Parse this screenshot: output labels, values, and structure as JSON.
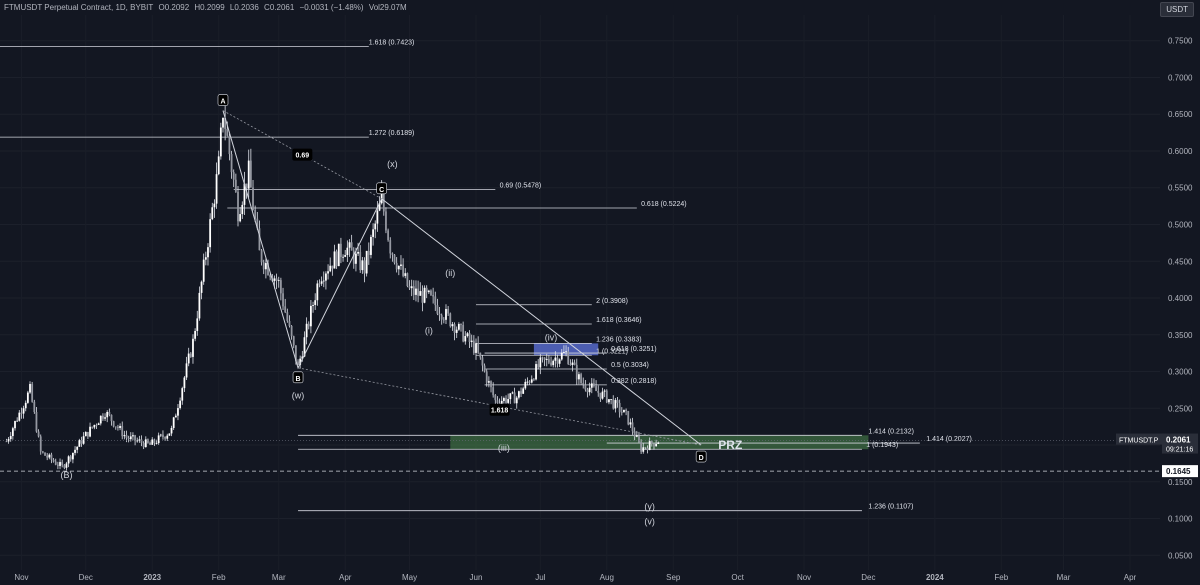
{
  "header": {
    "symbol": "FTMUSDT Perpetual Contract, 1D, BYBIT",
    "open": "O0.2092",
    "high": "H0.2099",
    "low": "L0.2036",
    "close": "C0.2061",
    "change": "−0.0031 (−1.48%)",
    "volume": "Vol29.07M"
  },
  "currency": "USDT",
  "colors": {
    "background": "#131722",
    "up": "#ffffff",
    "down": "#ffffff",
    "grid": "#1e222d",
    "prz_zone": "#3a6b3a",
    "blue_zone": "#5b6fd6"
  },
  "chart_data": {
    "type": "candlestick",
    "instrument": "FTMUSDT.P",
    "timeframe": "1D",
    "y_axis": {
      "min": 0.03,
      "max": 0.785,
      "ticks": [
        0.75,
        0.7,
        0.65,
        0.6,
        0.55,
        0.5,
        0.45,
        0.4,
        0.35,
        0.3,
        0.25,
        0.2,
        0.15,
        0.1,
        0.05
      ],
      "tick_labels": [
        "0.7500",
        "0.7000",
        "0.6500",
        "0.6000",
        "0.5500",
        "0.5000",
        "0.4500",
        "0.4000",
        "0.3500",
        "0.3000",
        "0.2500",
        "0.2000",
        "0.1500",
        "0.1000",
        "0.0500"
      ]
    },
    "x_axis": {
      "labels": [
        "Nov",
        "Dec",
        "2023",
        "Feb",
        "Mar",
        "Apr",
        "May",
        "Jun",
        "Jul",
        "Aug",
        "Sep",
        "Oct",
        "Nov",
        "Dec",
        "2024",
        "Feb",
        "Mar",
        "Apr"
      ]
    },
    "price_tags": {
      "symbol_label": "FTMUSDT.P",
      "last_price": "0.2061",
      "countdown": "09:21:16",
      "dashed_level": "0.1645"
    },
    "price_path": [
      [
        "2022-10-25",
        0.205
      ],
      [
        "2022-11-05",
        0.275
      ],
      [
        "2022-11-10",
        0.19
      ],
      [
        "2022-11-20",
        0.17
      ],
      [
        "2022-11-30",
        0.21
      ],
      [
        "2022-12-10",
        0.245
      ],
      [
        "2022-12-20",
        0.21
      ],
      [
        "2022-12-31",
        0.2
      ],
      [
        "2023-01-10",
        0.22
      ],
      [
        "2023-01-20",
        0.34
      ],
      [
        "2023-02-01",
        0.58
      ],
      [
        "2023-02-03",
        0.655
      ],
      [
        "2023-02-10",
        0.52
      ],
      [
        "2023-02-15",
        0.57
      ],
      [
        "2023-02-20",
        0.46
      ],
      [
        "2023-03-01",
        0.42
      ],
      [
        "2023-03-10",
        0.305
      ],
      [
        "2023-03-20",
        0.43
      ],
      [
        "2023-04-01",
        0.47
      ],
      [
        "2023-04-10",
        0.44
      ],
      [
        "2023-04-18",
        0.535
      ],
      [
        "2023-04-22",
        0.47
      ],
      [
        "2023-05-01",
        0.41
      ],
      [
        "2023-05-10",
        0.4
      ],
      [
        "2023-05-20",
        0.37
      ],
      [
        "2023-06-01",
        0.33
      ],
      [
        "2023-06-10",
        0.26
      ],
      [
        "2023-06-20",
        0.265
      ],
      [
        "2023-07-01",
        0.31
      ],
      [
        "2023-07-13",
        0.325
      ],
      [
        "2023-07-20",
        0.285
      ],
      [
        "2023-08-01",
        0.265
      ],
      [
        "2023-08-10",
        0.24
      ],
      [
        "2023-08-17",
        0.195
      ],
      [
        "2023-08-25",
        0.206
      ]
    ],
    "fib_levels": [
      {
        "label": "1.618 (0.7423)",
        "value": 0.7423
      },
      {
        "label": "1.272 (0.6189)",
        "value": 0.6189
      },
      {
        "label": "0.69 (0.5478)",
        "value": 0.5478
      },
      {
        "label": "0.618 (0.5224)",
        "value": 0.5224
      },
      {
        "label": "2 (0.3908)",
        "value": 0.3908
      },
      {
        "label": "1.618 (0.3646)",
        "value": 0.3646
      },
      {
        "label": "1.236 (0.3383)",
        "value": 0.3383
      },
      {
        "label": "1 (0.3221)",
        "value": 0.3221
      },
      {
        "label": "0.618 (0.3251)",
        "value": 0.3251
      },
      {
        "label": "0.5 (0.3034)",
        "value": 0.3034
      },
      {
        "label": "0.382 (0.2818)",
        "value": 0.2818
      },
      {
        "label": "1.414 (0.2132)",
        "value": 0.2132
      },
      {
        "label": "1.414 (0.2027)",
        "value": 0.2027
      },
      {
        "label": "1 (0.1943)",
        "value": 0.1943
      },
      {
        "label": "1.236 (0.1107)",
        "value": 0.1107
      }
    ],
    "harmonic_points": [
      {
        "label": "A",
        "date": "2023-02-03",
        "value": 0.655
      },
      {
        "label": "B",
        "date": "2023-03-10",
        "value": 0.305
      },
      {
        "label": "C",
        "date": "2023-04-18",
        "value": 0.535
      },
      {
        "label": "D",
        "date": "2023-09-14",
        "value": 0.2
      }
    ],
    "labels": {
      "ratio_ab": "0.69",
      "ratio_bd": "1.618",
      "prz": "PRZ",
      "wave_B": "(B)",
      "wave_w": "(w)",
      "wave_x": "(x)",
      "wave_y": "(y)",
      "wave_i": "(i)",
      "wave_ii": "(ii)",
      "wave_iii": "(iii)",
      "wave_iv": "(iv)",
      "wave_v": "(v)"
    }
  }
}
